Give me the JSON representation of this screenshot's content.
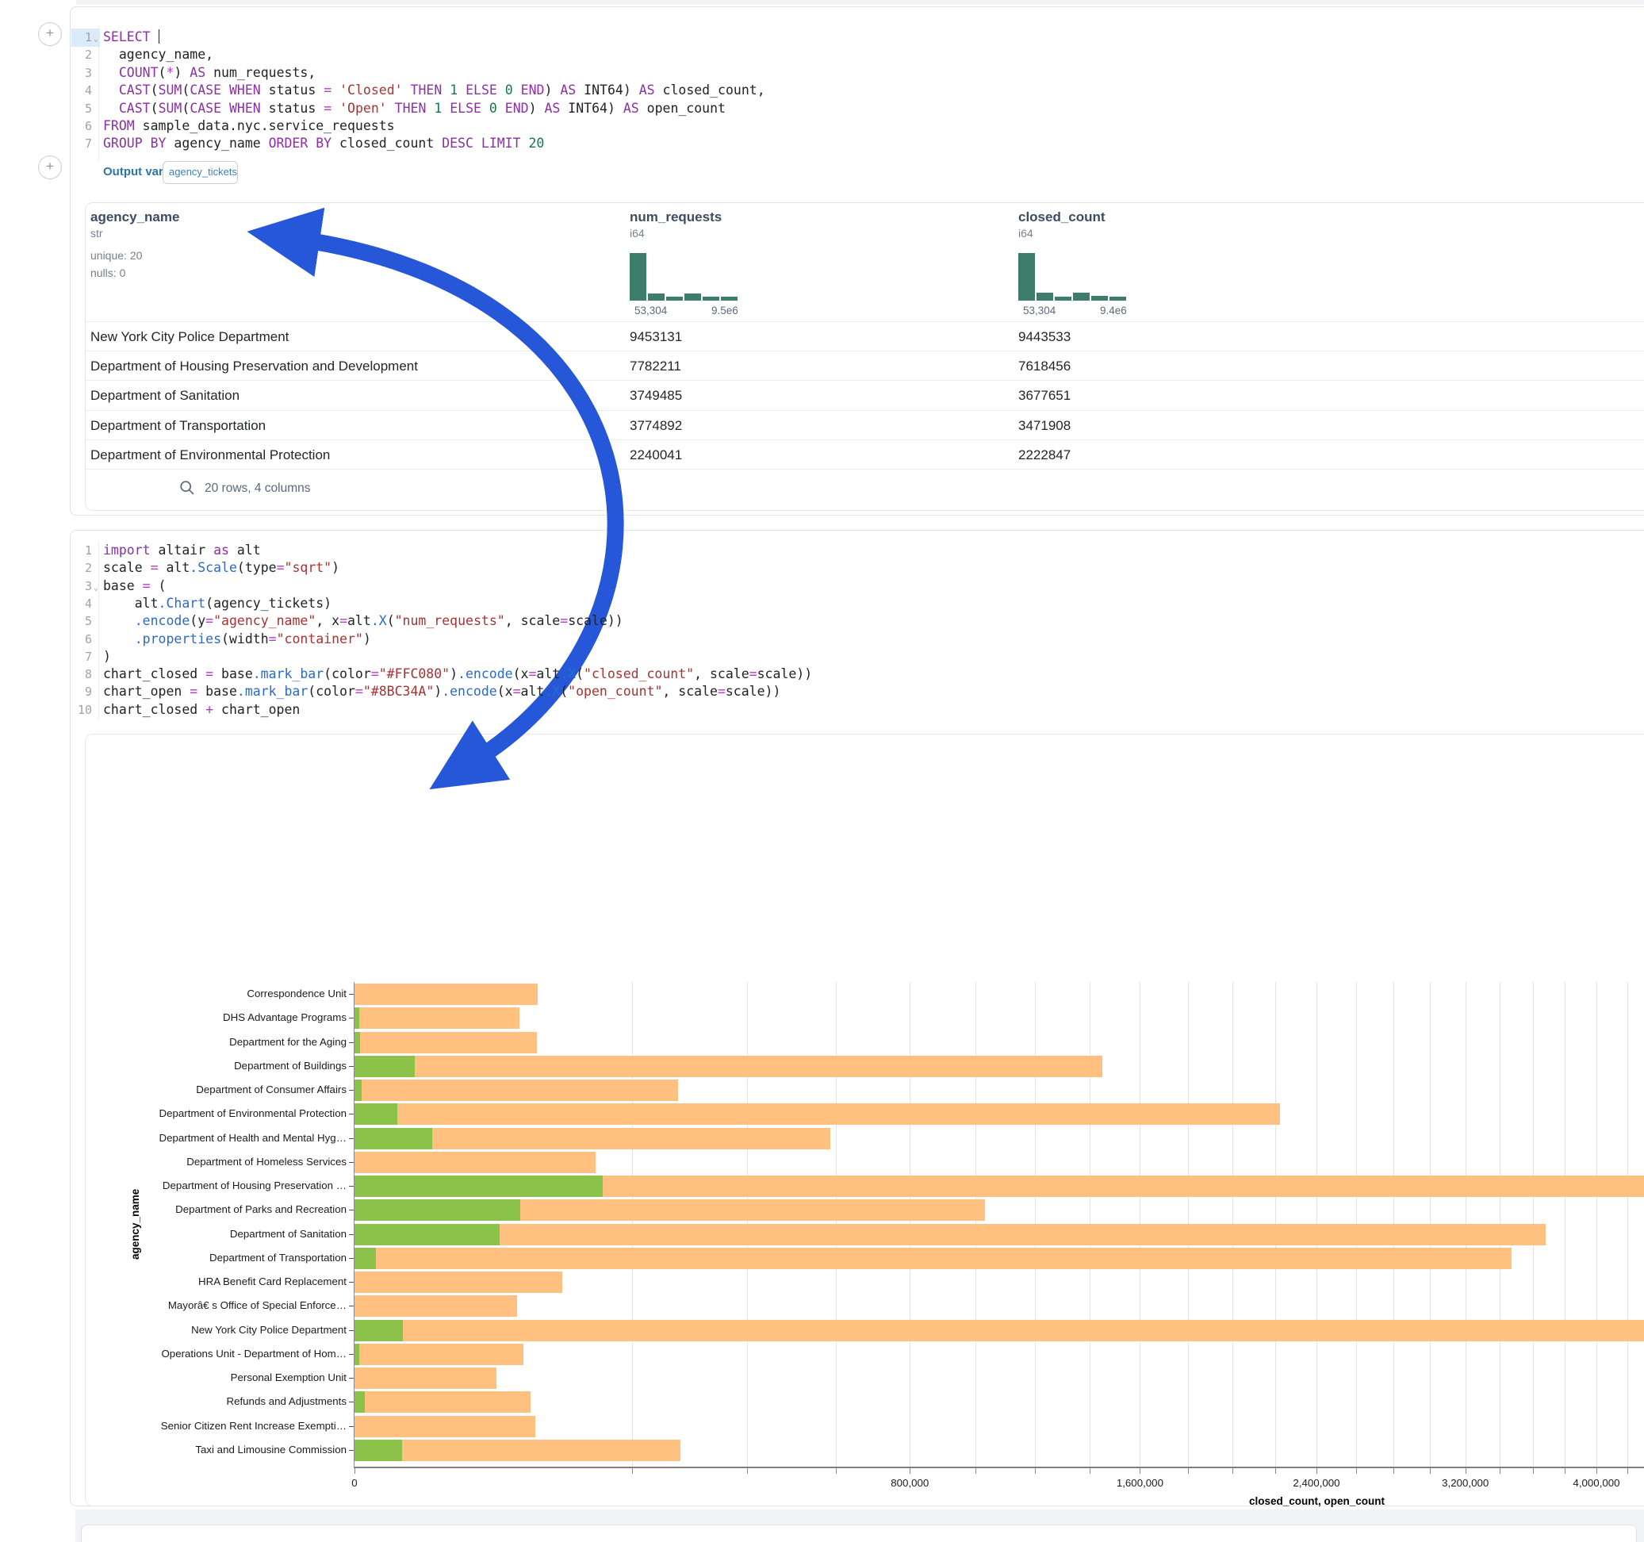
{
  "colors": {
    "arrow": "#2657D8",
    "closed_bar": "#FFC080",
    "open_bar": "#8BC34A",
    "histogram": "#3E7D6B",
    "output_label": "#2B77AD"
  },
  "add_button_label": "+",
  "fold_chevron": "⌄",
  "cell1": {
    "sql_lines": [
      {
        "n": "1",
        "fold": true,
        "hl": true,
        "tokens": [
          [
            "k",
            "SELECT"
          ],
          [
            "t",
            " "
          ],
          [
            "c",
            ""
          ]
        ]
      },
      {
        "n": "2",
        "tokens": [
          [
            "t",
            "  agency_name,"
          ]
        ]
      },
      {
        "n": "3",
        "tokens": [
          [
            "t",
            "  "
          ],
          [
            "k",
            "COUNT"
          ],
          [
            "t",
            "("
          ],
          [
            "o",
            "*"
          ],
          [
            "t",
            ") "
          ],
          [
            "k",
            "AS"
          ],
          [
            "t",
            " num_requests,"
          ]
        ]
      },
      {
        "n": "4",
        "tokens": [
          [
            "t",
            "  "
          ],
          [
            "k",
            "CAST"
          ],
          [
            "t",
            "("
          ],
          [
            "k",
            "SUM"
          ],
          [
            "t",
            "("
          ],
          [
            "k",
            "CASE"
          ],
          [
            "t",
            " "
          ],
          [
            "k",
            "WHEN"
          ],
          [
            "t",
            " status "
          ],
          [
            "o",
            "="
          ],
          [
            "t",
            " "
          ],
          [
            "s",
            "'Closed'"
          ],
          [
            "t",
            " "
          ],
          [
            "k",
            "THEN"
          ],
          [
            "t",
            " "
          ],
          [
            "n2",
            "1"
          ],
          [
            "t",
            " "
          ],
          [
            "k",
            "ELSE"
          ],
          [
            "t",
            " "
          ],
          [
            "n2",
            "0"
          ],
          [
            "t",
            " "
          ],
          [
            "k",
            "END"
          ],
          [
            "t",
            ") "
          ],
          [
            "k",
            "AS"
          ],
          [
            "t",
            " INT64) "
          ],
          [
            "k",
            "AS"
          ],
          [
            "t",
            " closed_count,"
          ]
        ]
      },
      {
        "n": "5",
        "tokens": [
          [
            "t",
            "  "
          ],
          [
            "k",
            "CAST"
          ],
          [
            "t",
            "("
          ],
          [
            "k",
            "SUM"
          ],
          [
            "t",
            "("
          ],
          [
            "k",
            "CASE"
          ],
          [
            "t",
            " "
          ],
          [
            "k",
            "WHEN"
          ],
          [
            "t",
            " status "
          ],
          [
            "o",
            "="
          ],
          [
            "t",
            " "
          ],
          [
            "s",
            "'Open'"
          ],
          [
            "t",
            " "
          ],
          [
            "k",
            "THEN"
          ],
          [
            "t",
            " "
          ],
          [
            "n2",
            "1"
          ],
          [
            "t",
            " "
          ],
          [
            "k",
            "ELSE"
          ],
          [
            "t",
            " "
          ],
          [
            "n2",
            "0"
          ],
          [
            "t",
            " "
          ],
          [
            "k",
            "END"
          ],
          [
            "t",
            ") "
          ],
          [
            "k",
            "AS"
          ],
          [
            "t",
            " INT64) "
          ],
          [
            "k",
            "AS"
          ],
          [
            "t",
            " open_count"
          ]
        ]
      },
      {
        "n": "6",
        "tokens": [
          [
            "k",
            "FROM"
          ],
          [
            "t",
            " sample_data.nyc.service_requests"
          ]
        ]
      },
      {
        "n": "7",
        "tokens": [
          [
            "k",
            "GROUP BY"
          ],
          [
            "t",
            " agency_name "
          ],
          [
            "k",
            "ORDER BY"
          ],
          [
            "t",
            " closed_count "
          ],
          [
            "k",
            "DESC"
          ],
          [
            "t",
            " "
          ],
          [
            "k",
            "LIMIT"
          ],
          [
            "t",
            " "
          ],
          [
            "n2",
            "20"
          ]
        ]
      }
    ],
    "output_variable": {
      "label": "Output variable:",
      "value": "agency_tickets"
    },
    "table": {
      "columns": [
        {
          "name": "agency_name",
          "type": "str",
          "stats": [
            "unique: 20",
            "nulls: 0"
          ],
          "x": 113
        },
        {
          "name": "num_requests",
          "type": "i64",
          "x": 793,
          "hist": {
            "bins": [
              1,
              0.15,
              0.08,
              0.15,
              0.09,
              0.08
            ],
            "min_label": "53,304",
            "max_label": "9.5e6"
          }
        },
        {
          "name": "closed_count",
          "type": "i64",
          "x": 1283,
          "hist": {
            "bins": [
              1,
              0.16,
              0.09,
              0.16,
              0.1,
              0.09
            ],
            "min_label": "53,304",
            "max_label": "9.4e6"
          }
        }
      ],
      "rows": [
        [
          "New York City Police Department",
          "9453131",
          "9443533"
        ],
        [
          "Department of Housing Preservation and Development",
          "7782211",
          "7618456"
        ],
        [
          "Department of Sanitation",
          "3749485",
          "3677651"
        ],
        [
          "Department of Transportation",
          "3774892",
          "3471908"
        ],
        [
          "Department of Environmental Protection",
          "2240041",
          "2222847"
        ]
      ],
      "footer": "20 rows, 4 columns"
    }
  },
  "cell2": {
    "python_lines": [
      {
        "n": "1",
        "tokens": [
          [
            "k",
            "import"
          ],
          [
            "t",
            " altair "
          ],
          [
            "k",
            "as"
          ],
          [
            "t",
            " alt"
          ]
        ]
      },
      {
        "n": "2",
        "tokens": [
          [
            "t",
            "scale "
          ],
          [
            "o",
            "="
          ],
          [
            "t",
            " alt"
          ],
          [
            "f",
            ".Scale"
          ],
          [
            "t",
            "(type"
          ],
          [
            "o",
            "="
          ],
          [
            "s",
            "\"sqrt\""
          ],
          [
            "t",
            ")"
          ]
        ]
      },
      {
        "n": "3",
        "fold": true,
        "tokens": [
          [
            "t",
            "base "
          ],
          [
            "o",
            "="
          ],
          [
            "t",
            " ("
          ]
        ]
      },
      {
        "n": "4",
        "tokens": [
          [
            "t",
            "    alt"
          ],
          [
            "f",
            ".Chart"
          ],
          [
            "t",
            "(agency_tickets)"
          ]
        ]
      },
      {
        "n": "5",
        "tokens": [
          [
            "t",
            "    "
          ],
          [
            "f",
            ".encode"
          ],
          [
            "t",
            "(y"
          ],
          [
            "o",
            "="
          ],
          [
            "s",
            "\"agency_name\""
          ],
          [
            "t",
            ", x"
          ],
          [
            "o",
            "="
          ],
          [
            "t",
            "alt"
          ],
          [
            "f",
            ".X"
          ],
          [
            "t",
            "("
          ],
          [
            "s",
            "\"num_requests\""
          ],
          [
            "t",
            ", scale"
          ],
          [
            "o",
            "="
          ],
          [
            "t",
            "scale))"
          ]
        ]
      },
      {
        "n": "6",
        "tokens": [
          [
            "t",
            "    "
          ],
          [
            "f",
            ".properties"
          ],
          [
            "t",
            "(width"
          ],
          [
            "o",
            "="
          ],
          [
            "s",
            "\"container\""
          ],
          [
            "t",
            ")"
          ]
        ]
      },
      {
        "n": "7",
        "tokens": [
          [
            "t",
            ")"
          ]
        ]
      },
      {
        "n": "8",
        "tokens": [
          [
            "t",
            "chart_closed "
          ],
          [
            "o",
            "="
          ],
          [
            "t",
            " base"
          ],
          [
            "f",
            ".mark_bar"
          ],
          [
            "t",
            "(color"
          ],
          [
            "o",
            "="
          ],
          [
            "s",
            "\"#FFC080\""
          ],
          [
            "t",
            ")"
          ],
          [
            "f",
            ".encode"
          ],
          [
            "t",
            "(x"
          ],
          [
            "o",
            "="
          ],
          [
            "t",
            "alt"
          ],
          [
            "f",
            ".X"
          ],
          [
            "t",
            "("
          ],
          [
            "s",
            "\"closed_count\""
          ],
          [
            "t",
            ", scale"
          ],
          [
            "o",
            "="
          ],
          [
            "t",
            "scale))"
          ]
        ]
      },
      {
        "n": "9",
        "tokens": [
          [
            "t",
            "chart_open "
          ],
          [
            "o",
            "="
          ],
          [
            "t",
            " base"
          ],
          [
            "f",
            ".mark_bar"
          ],
          [
            "t",
            "(color"
          ],
          [
            "o",
            "="
          ],
          [
            "s",
            "\"#8BC34A\""
          ],
          [
            "t",
            ")"
          ],
          [
            "f",
            ".encode"
          ],
          [
            "t",
            "(x"
          ],
          [
            "o",
            "="
          ],
          [
            "t",
            "alt"
          ],
          [
            "f",
            ".X"
          ],
          [
            "t",
            "("
          ],
          [
            "s",
            "\"open_count\""
          ],
          [
            "t",
            ", scale"
          ],
          [
            "o",
            "="
          ],
          [
            "t",
            "scale))"
          ]
        ]
      },
      {
        "n": "10",
        "tokens": [
          [
            "t",
            "chart_closed "
          ],
          [
            "o",
            "+"
          ],
          [
            "t",
            " chart_open"
          ]
        ]
      }
    ]
  },
  "chart_data": {
    "type": "bar",
    "orientation": "horizontal",
    "x_scale": "sqrt",
    "title": "",
    "xlabel": "closed_count, open_count",
    "ylabel": "agency_name",
    "xlim": [
      0,
      9443533
    ],
    "grid": true,
    "minor_tick_step": 200000,
    "x_ticks": [
      {
        "v": 0,
        "label": "0"
      },
      {
        "v": 800000,
        "label": "800,000"
      },
      {
        "v": 1600000,
        "label": "1,600,000"
      },
      {
        "v": 2400000,
        "label": "2,400,000"
      },
      {
        "v": 3200000,
        "label": "3,200,000"
      },
      {
        "v": 4000000,
        "label": "4,000,000"
      }
    ],
    "categories": [
      "Correspondence Unit",
      "DHS Advantage Programs",
      "Department for the Aging",
      "Department of Buildings",
      "Department of Consumer Affairs",
      "Department of Environmental Protection",
      "Department of Health and Mental Hyg…",
      "Department of Homeless Services",
      "Department of Housing Preservation …",
      "Department of Parks and Recreation",
      "Department of Sanitation",
      "Department of Transportation",
      "HRA Benefit Card Replacement",
      "Mayorâ€ s Office of Special Enforce…",
      "New York City Police Department",
      "Operations Unit - Department of Hom…",
      "Personal Exemption Unit",
      "Refunds and Adjustments",
      "Senior Citizen Rent Increase Exempti…",
      "Taxi and Limousine Commission"
    ],
    "series": [
      {
        "name": "closed_count",
        "color": "#FFC080",
        "values": [
          87000,
          70500,
          86000,
          1450000,
          272000,
          2222847,
          588000,
          151000,
          7618456,
          1030000,
          3677651,
          3471908,
          112000,
          68500,
          9443533,
          74000,
          52000,
          80500,
          85000,
          275000
        ]
      },
      {
        "name": "open_count",
        "color": "#8BC34A",
        "values": [
          0,
          60,
          80,
          9300,
          130,
          4700,
          15800,
          0,
          160000,
          71500,
          54500,
          1150,
          0,
          0,
          6000,
          60,
          0,
          270,
          0,
          5900
        ]
      }
    ]
  }
}
